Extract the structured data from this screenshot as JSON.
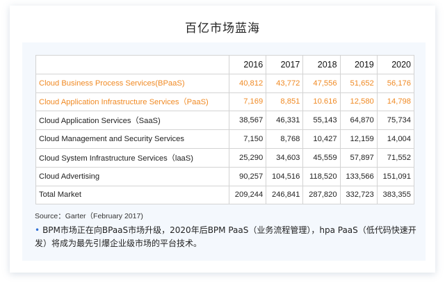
{
  "title": "百亿市场蓝海",
  "table": {
    "years": [
      "2016",
      "2017",
      "2018",
      "2019",
      "2020"
    ],
    "rows": [
      {
        "label": "Cloud Business Process Services(BPaaS)",
        "values": [
          "40,812",
          "43,772",
          "47,556",
          "51,652",
          "56,176"
        ],
        "highlight": true
      },
      {
        "label": "Cloud Application Infrastructure Services（PaaS)",
        "values": [
          "7,169",
          "8,851",
          "10.616",
          "12,580",
          "14,798"
        ],
        "highlight": true
      },
      {
        "label": "Cloud Application Services（SaaS)",
        "values": [
          "38,567",
          "46,331",
          "55,143",
          "64,870",
          "75,734"
        ],
        "highlight": false
      },
      {
        "label": "Cloud Management and Security Services",
        "values": [
          "7,150",
          "8,768",
          "10,427",
          "12,159",
          "14,004"
        ],
        "highlight": false
      },
      {
        "label": "Cloud System Infrastructure Services（laaS)",
        "values": [
          "25,290",
          "34,603",
          "45,559",
          "57,897",
          "71,552"
        ],
        "highlight": false
      },
      {
        "label": "Cloud Advertising",
        "values": [
          "90,257",
          "104,516",
          "118,520",
          "133,566",
          "151,091"
        ],
        "highlight": false
      },
      {
        "label": "Total Market",
        "values": [
          "209,244",
          "246,841",
          "287,820",
          "332,723",
          "383,355"
        ],
        "highlight": false
      }
    ],
    "highlight_color": "#f08a24"
  },
  "source": "Source：Garter（February 2017)",
  "note": {
    "bullet": "•",
    "text": "BPM市场正在向BPaaS市场升级，2020年后BPM PaaS（业务流程管理），hpa PaaS（低代码快速开发）将成为最先引爆企业级市场的平台技术。"
  },
  "colors": {
    "accent": "#2f6fd6",
    "panel": "#f4f8fd"
  }
}
